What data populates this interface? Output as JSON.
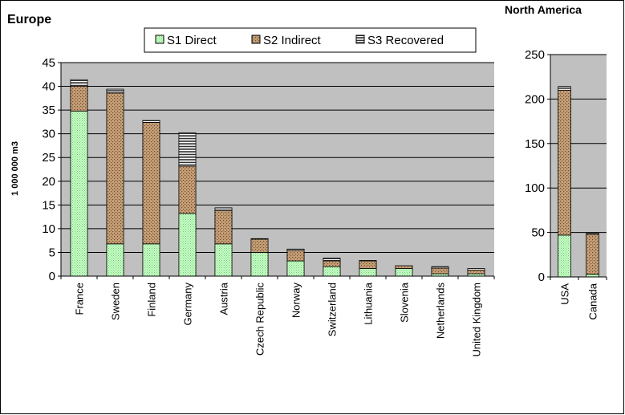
{
  "chart_data": [
    {
      "type": "bar",
      "stacked": true,
      "title": "Europe",
      "ylabel": "1 000 000 m3",
      "xlabel": "",
      "ylim": [
        0,
        45
      ],
      "yticks": [
        0,
        5,
        10,
        15,
        20,
        25,
        30,
        35,
        40,
        45
      ],
      "grid": true,
      "legend": "top",
      "categories": [
        "France",
        "Sweden",
        "Finland",
        "Germany",
        "Austria",
        "Czech Republic",
        "Norway",
        "Switzerland",
        "Lithuania",
        "Slovenia",
        "Netherlands",
        "United Kingdom"
      ],
      "series": [
        {
          "name": "S1 Direct",
          "values": [
            34.8,
            6.8,
            6.8,
            13.2,
            6.8,
            5.0,
            3.2,
            2.0,
            1.6,
            1.6,
            0.5,
            0.5
          ]
        },
        {
          "name": "S2 Indirect",
          "values": [
            5.2,
            31.8,
            25.6,
            10.0,
            7.0,
            2.8,
            2.2,
            1.2,
            1.6,
            0.6,
            1.2,
            0.8
          ]
        },
        {
          "name": "S3 Recovered",
          "values": [
            1.4,
            0.8,
            0.4,
            7.0,
            0.6,
            0.1,
            0.3,
            0.6,
            0.1,
            0.0,
            0.3,
            0.3
          ]
        }
      ]
    },
    {
      "type": "bar",
      "stacked": true,
      "title": "North America",
      "ylabel": "",
      "xlabel": "",
      "ylim": [
        0,
        250
      ],
      "yticks": [
        0,
        50,
        100,
        150,
        200,
        250
      ],
      "grid": true,
      "categories": [
        "USA",
        "Canada"
      ],
      "series": [
        {
          "name": "S1 Direct",
          "values": [
            47,
            3
          ]
        },
        {
          "name": "S2 Indirect",
          "values": [
            163,
            45
          ]
        },
        {
          "name": "S3 Recovered",
          "values": [
            4,
            1
          ]
        }
      ]
    }
  ],
  "colors": {
    "plot_background": "#c0c0c0",
    "s1_fill": "#ccffcc",
    "s1_dot": "#66cc66",
    "s2_fill": "#c8a27a",
    "s2_dot": "#6e4a26",
    "s3_fill": "#ffffff",
    "s3_line": "#303030"
  }
}
